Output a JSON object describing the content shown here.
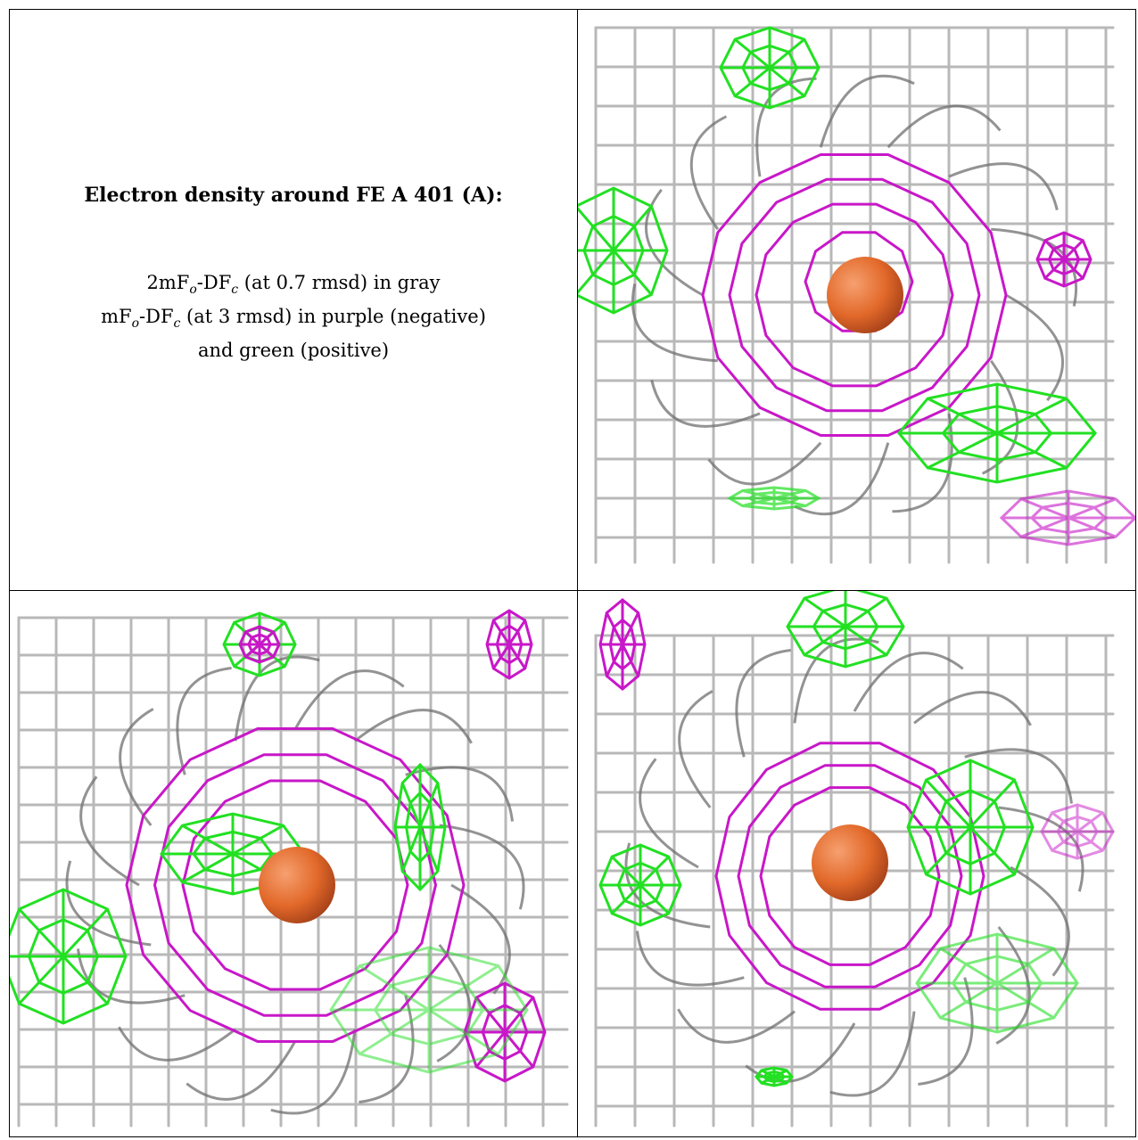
{
  "caption": {
    "heading": "Electron density around FE A 401 (A):",
    "line1": {
      "a": "2mF",
      "b": "o",
      "c": "-DF",
      "d": "c",
      "e": " (at 0.7 rmsd) in gray"
    },
    "line2": {
      "a": "mF",
      "b": "o",
      "c": "-DF",
      "d": "c",
      "e": " (at 3 rmsd) in purple (negative)"
    },
    "line3": "and green (positive)"
  },
  "colors": {
    "map_2fofc": "#b8b8b8",
    "map_2fofc_dark": "#6f6f6f",
    "map_fofc_negative": "#c817c8",
    "map_fofc_positive": "#22e022",
    "fe_atom": "#e2692a"
  },
  "panels": [
    {
      "view": "top-right"
    },
    {
      "view": "bottom-left"
    },
    {
      "view": "bottom-right"
    }
  ]
}
